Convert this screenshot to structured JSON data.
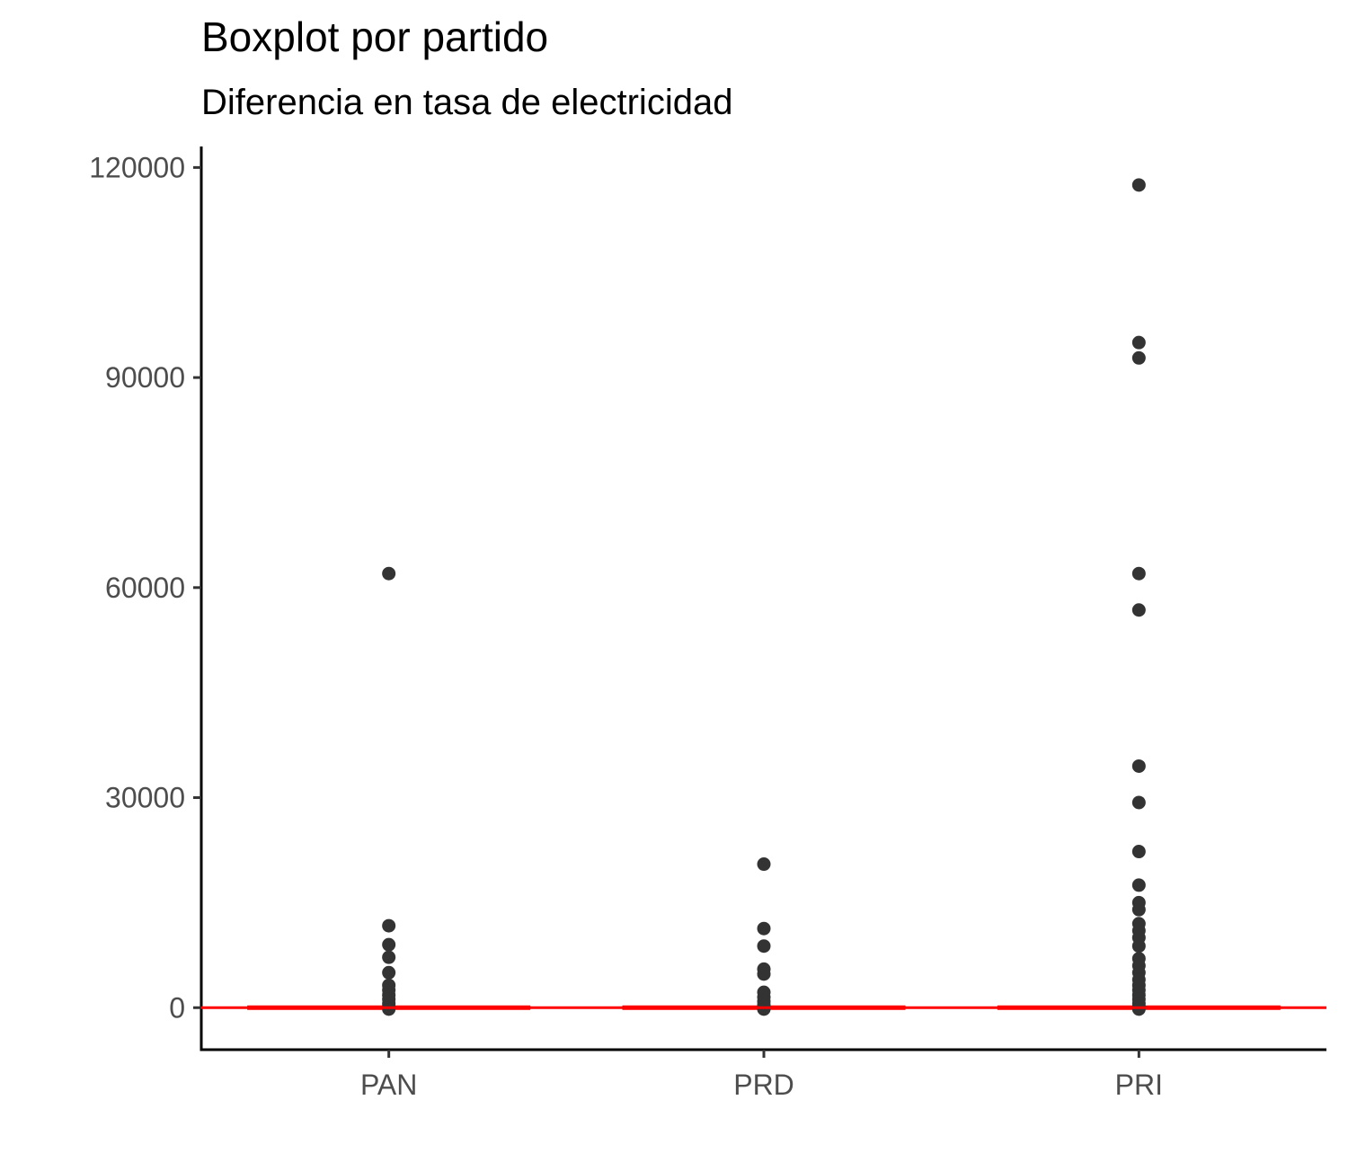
{
  "chart_data": {
    "type": "boxplot",
    "title": "Boxplot por partido",
    "subtitle": "Diferencia en tasa de electricidad",
    "xlabel": "",
    "ylabel": "",
    "categories": [
      "PAN",
      "PRD",
      "PRI"
    ],
    "y_ticks": [
      0,
      30000,
      60000,
      90000,
      120000
    ],
    "y_tick_labels": [
      "0",
      "30000",
      "60000",
      "90000",
      "120000"
    ],
    "ylim": [
      -6000,
      123000
    ],
    "reference_line": {
      "y": 0,
      "color": "#ff0000"
    },
    "grid": false,
    "box_color": "#ff0000",
    "point_color": "#333333",
    "boxes": [
      {
        "category": "PAN",
        "q1": 0,
        "median": 0,
        "q3": 0,
        "outliers": [
          62000,
          11700,
          9000,
          7200,
          5000,
          3200,
          2500,
          1800,
          1200,
          600,
          200,
          -200
        ]
      },
      {
        "category": "PRD",
        "q1": 0,
        "median": 0,
        "q3": 0,
        "outliers": [
          20500,
          11300,
          8800,
          5500,
          4800,
          2200,
          1500,
          900,
          400,
          -200
        ]
      },
      {
        "category": "PRI",
        "q1": 0,
        "median": 0,
        "q3": 0,
        "outliers": [
          117500,
          95000,
          92800,
          62000,
          56800,
          34500,
          29300,
          22300,
          17500,
          15000,
          14000,
          12000,
          11000,
          10000,
          8800,
          7000,
          6000,
          5000,
          4000,
          3200,
          2500,
          1800,
          1200,
          600,
          200,
          -200
        ]
      }
    ]
  }
}
